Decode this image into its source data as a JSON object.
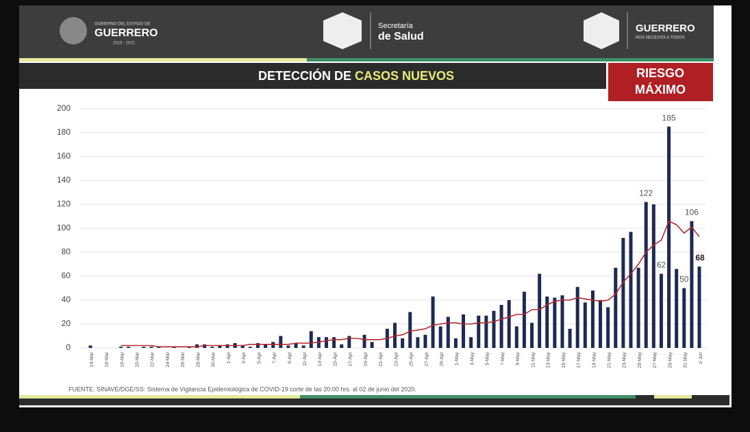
{
  "header": {
    "left_small": "GOBIERNO DEL ESTADO DE",
    "left_big": "GUERRERO",
    "left_years": "2015 - 2021",
    "center_1": "Secretaría",
    "center_2": "de Salud",
    "right_big": "GUERRERO",
    "right_small": "NOS NECESITA A TODOS"
  },
  "banner": {
    "title_1": "DETECCIÓN DE",
    "title_2": "CASOS NUEVOS",
    "risk_1": "RIESGO",
    "risk_2": "MÁXIMO"
  },
  "footer": {
    "source": "FUENTE: SINAVE/DGE/SS: Sistema de Vigilancia Epidemiológica de COVID-19 corte de las 20:00 hrs. al 02 de junio del 2020."
  },
  "chart_data": {
    "type": "bar",
    "categories": [
      "14-Mar",
      null,
      "16-Mar",
      null,
      "18-Mar",
      null,
      "20-Mar",
      null,
      "22-Mar",
      null,
      "24-Mar",
      null,
      "26-Mar",
      null,
      "28-Mar",
      null,
      "30-Mar",
      null,
      "1-Apr",
      null,
      "3-Apr",
      null,
      "5-Apr",
      null,
      "7-Apr",
      null,
      "9-Apr",
      null,
      "11-Apr",
      null,
      "13-Apr",
      null,
      "15-Apr",
      null,
      "17-Apr",
      null,
      "19-Apr",
      null,
      "21-Apr",
      null,
      "23-Apr",
      null,
      "25-Apr",
      null,
      "27-Apr",
      null,
      "29-Apr",
      null,
      "1-May",
      null,
      "3-May",
      null,
      "5-May",
      null,
      "7-May",
      null,
      "9-May",
      null,
      "11-May",
      null,
      "13-May",
      null,
      "15-May",
      null,
      "17-May",
      null,
      "19-May",
      null,
      "21-May",
      null,
      "23-May",
      null,
      "25-May",
      null,
      "27-May",
      null,
      "29-May",
      null,
      "31-May",
      null,
      "2-Jun"
    ],
    "series": [
      {
        "color": "#1f2a52",
        "values": [
          2,
          0,
          0,
          0,
          1,
          1,
          0,
          1,
          1,
          1,
          0,
          1,
          0,
          1,
          3,
          3,
          1,
          2,
          3,
          4,
          2,
          1,
          4,
          3,
          5,
          10,
          2,
          4,
          2,
          14,
          9,
          9,
          9,
          3,
          10,
          0,
          11,
          5,
          0,
          16,
          21,
          8,
          30,
          9,
          11,
          43,
          18,
          26,
          8,
          28,
          9,
          27,
          27,
          31,
          36,
          40,
          18,
          47,
          21,
          62,
          43,
          42,
          44,
          16,
          51,
          38,
          48,
          40,
          34,
          67,
          92,
          97,
          67,
          122,
          120,
          62,
          185,
          66,
          50,
          106,
          68
        ],
        "value_labels": [
          null,
          null,
          null,
          null,
          null,
          null,
          null,
          null,
          null,
          null,
          null,
          null,
          null,
          null,
          null,
          null,
          null,
          null,
          null,
          null,
          null,
          null,
          null,
          null,
          null,
          null,
          null,
          null,
          null,
          null,
          null,
          null,
          null,
          null,
          null,
          null,
          null,
          null,
          null,
          null,
          null,
          null,
          null,
          null,
          null,
          null,
          null,
          null,
          null,
          null,
          null,
          null,
          null,
          null,
          null,
          null,
          null,
          null,
          null,
          null,
          null,
          null,
          null,
          null,
          null,
          null,
          null,
          null,
          null,
          null,
          null,
          null,
          null,
          "122",
          null,
          "62",
          "185",
          null,
          "50",
          "106",
          "68"
        ]
      },
      {
        "type": "line",
        "color": "#b3282d",
        "values": [
          null,
          null,
          null,
          null,
          2,
          2,
          2,
          2,
          2,
          1,
          1,
          1,
          1,
          1,
          1,
          2,
          2,
          2,
          2,
          2,
          2,
          3,
          3,
          3,
          3,
          3,
          3,
          4,
          4,
          4,
          5,
          6,
          7,
          7,
          8,
          8,
          7,
          7,
          7,
          8,
          10,
          11,
          14,
          15,
          16,
          19,
          20,
          21,
          21,
          20,
          20,
          21,
          21,
          22,
          24,
          26,
          28,
          28,
          32,
          32,
          36,
          39,
          40,
          40,
          42,
          41,
          40,
          39,
          40,
          45,
          55,
          62,
          70,
          80,
          86,
          90,
          106,
          103,
          96,
          101,
          93
        ]
      }
    ],
    "ylim": [
      0,
      200
    ],
    "yticks": [
      0,
      20,
      40,
      60,
      80,
      100,
      120,
      140,
      160,
      180,
      200
    ],
    "grid": true
  }
}
